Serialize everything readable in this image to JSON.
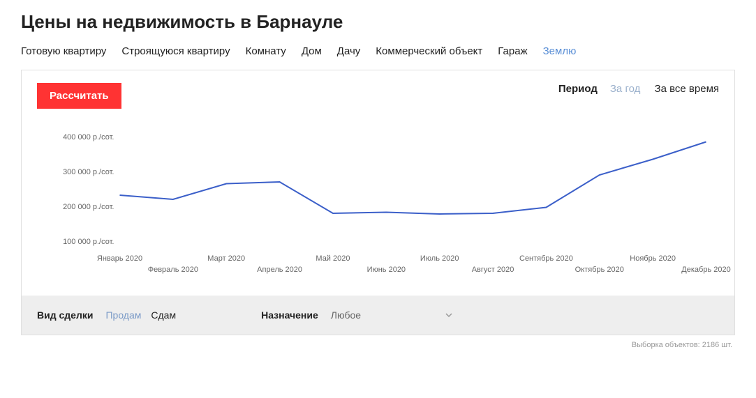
{
  "title": "Цены на недвижимость в Барнауле",
  "tabs": [
    {
      "label": "Готовую квартиру",
      "active": false
    },
    {
      "label": "Строящуюся квартиру",
      "active": false
    },
    {
      "label": "Комнату",
      "active": false
    },
    {
      "label": "Дом",
      "active": false
    },
    {
      "label": "Дачу",
      "active": false
    },
    {
      "label": "Коммерческий объект",
      "active": false
    },
    {
      "label": "Гараж",
      "active": false
    },
    {
      "label": "Землю",
      "active": true
    }
  ],
  "calc_button": "Рассчитать",
  "period": {
    "label": "Период",
    "options": [
      {
        "label": "За год",
        "active": false
      },
      {
        "label": "За все время",
        "active": true
      }
    ]
  },
  "chart": {
    "type": "line",
    "line_color": "#3b5fc9",
    "line_width": 2,
    "background_color": "#ffffff",
    "ylabel_suffix": " р./сот.",
    "ylim": [
      80000,
      420000
    ],
    "yticks": [
      100000,
      200000,
      300000,
      400000
    ],
    "ytick_labels": [
      "100 000 р./сот.",
      "200 000 р./сот.",
      "300 000 р./сот.",
      "400 000 р./сот."
    ],
    "grid_color": "#ffffff",
    "tick_font_size": 11,
    "tick_color": "#666666",
    "x_labels": [
      "Январь 2020",
      "Февраль 2020",
      "Март 2020",
      "Апрель 2020",
      "Май 2020",
      "Июнь 2020",
      "Июль 2020",
      "Август 2020",
      "Сентябрь 2020",
      "Октябрь 2020",
      "Ноябрь 2020",
      "Декабрь 2020"
    ],
    "values": [
      232000,
      220000,
      265000,
      270000,
      180000,
      183000,
      178000,
      180000,
      197000,
      290000,
      335000,
      385000
    ]
  },
  "filters": {
    "deal_label": "Вид сделки",
    "deal_options": [
      {
        "label": "Продам",
        "active": true
      },
      {
        "label": "Сдам",
        "active": false
      }
    ],
    "purpose_label": "Назначение",
    "purpose_value": "Любое"
  },
  "footer": "Выборка объектов: 2186 шт."
}
